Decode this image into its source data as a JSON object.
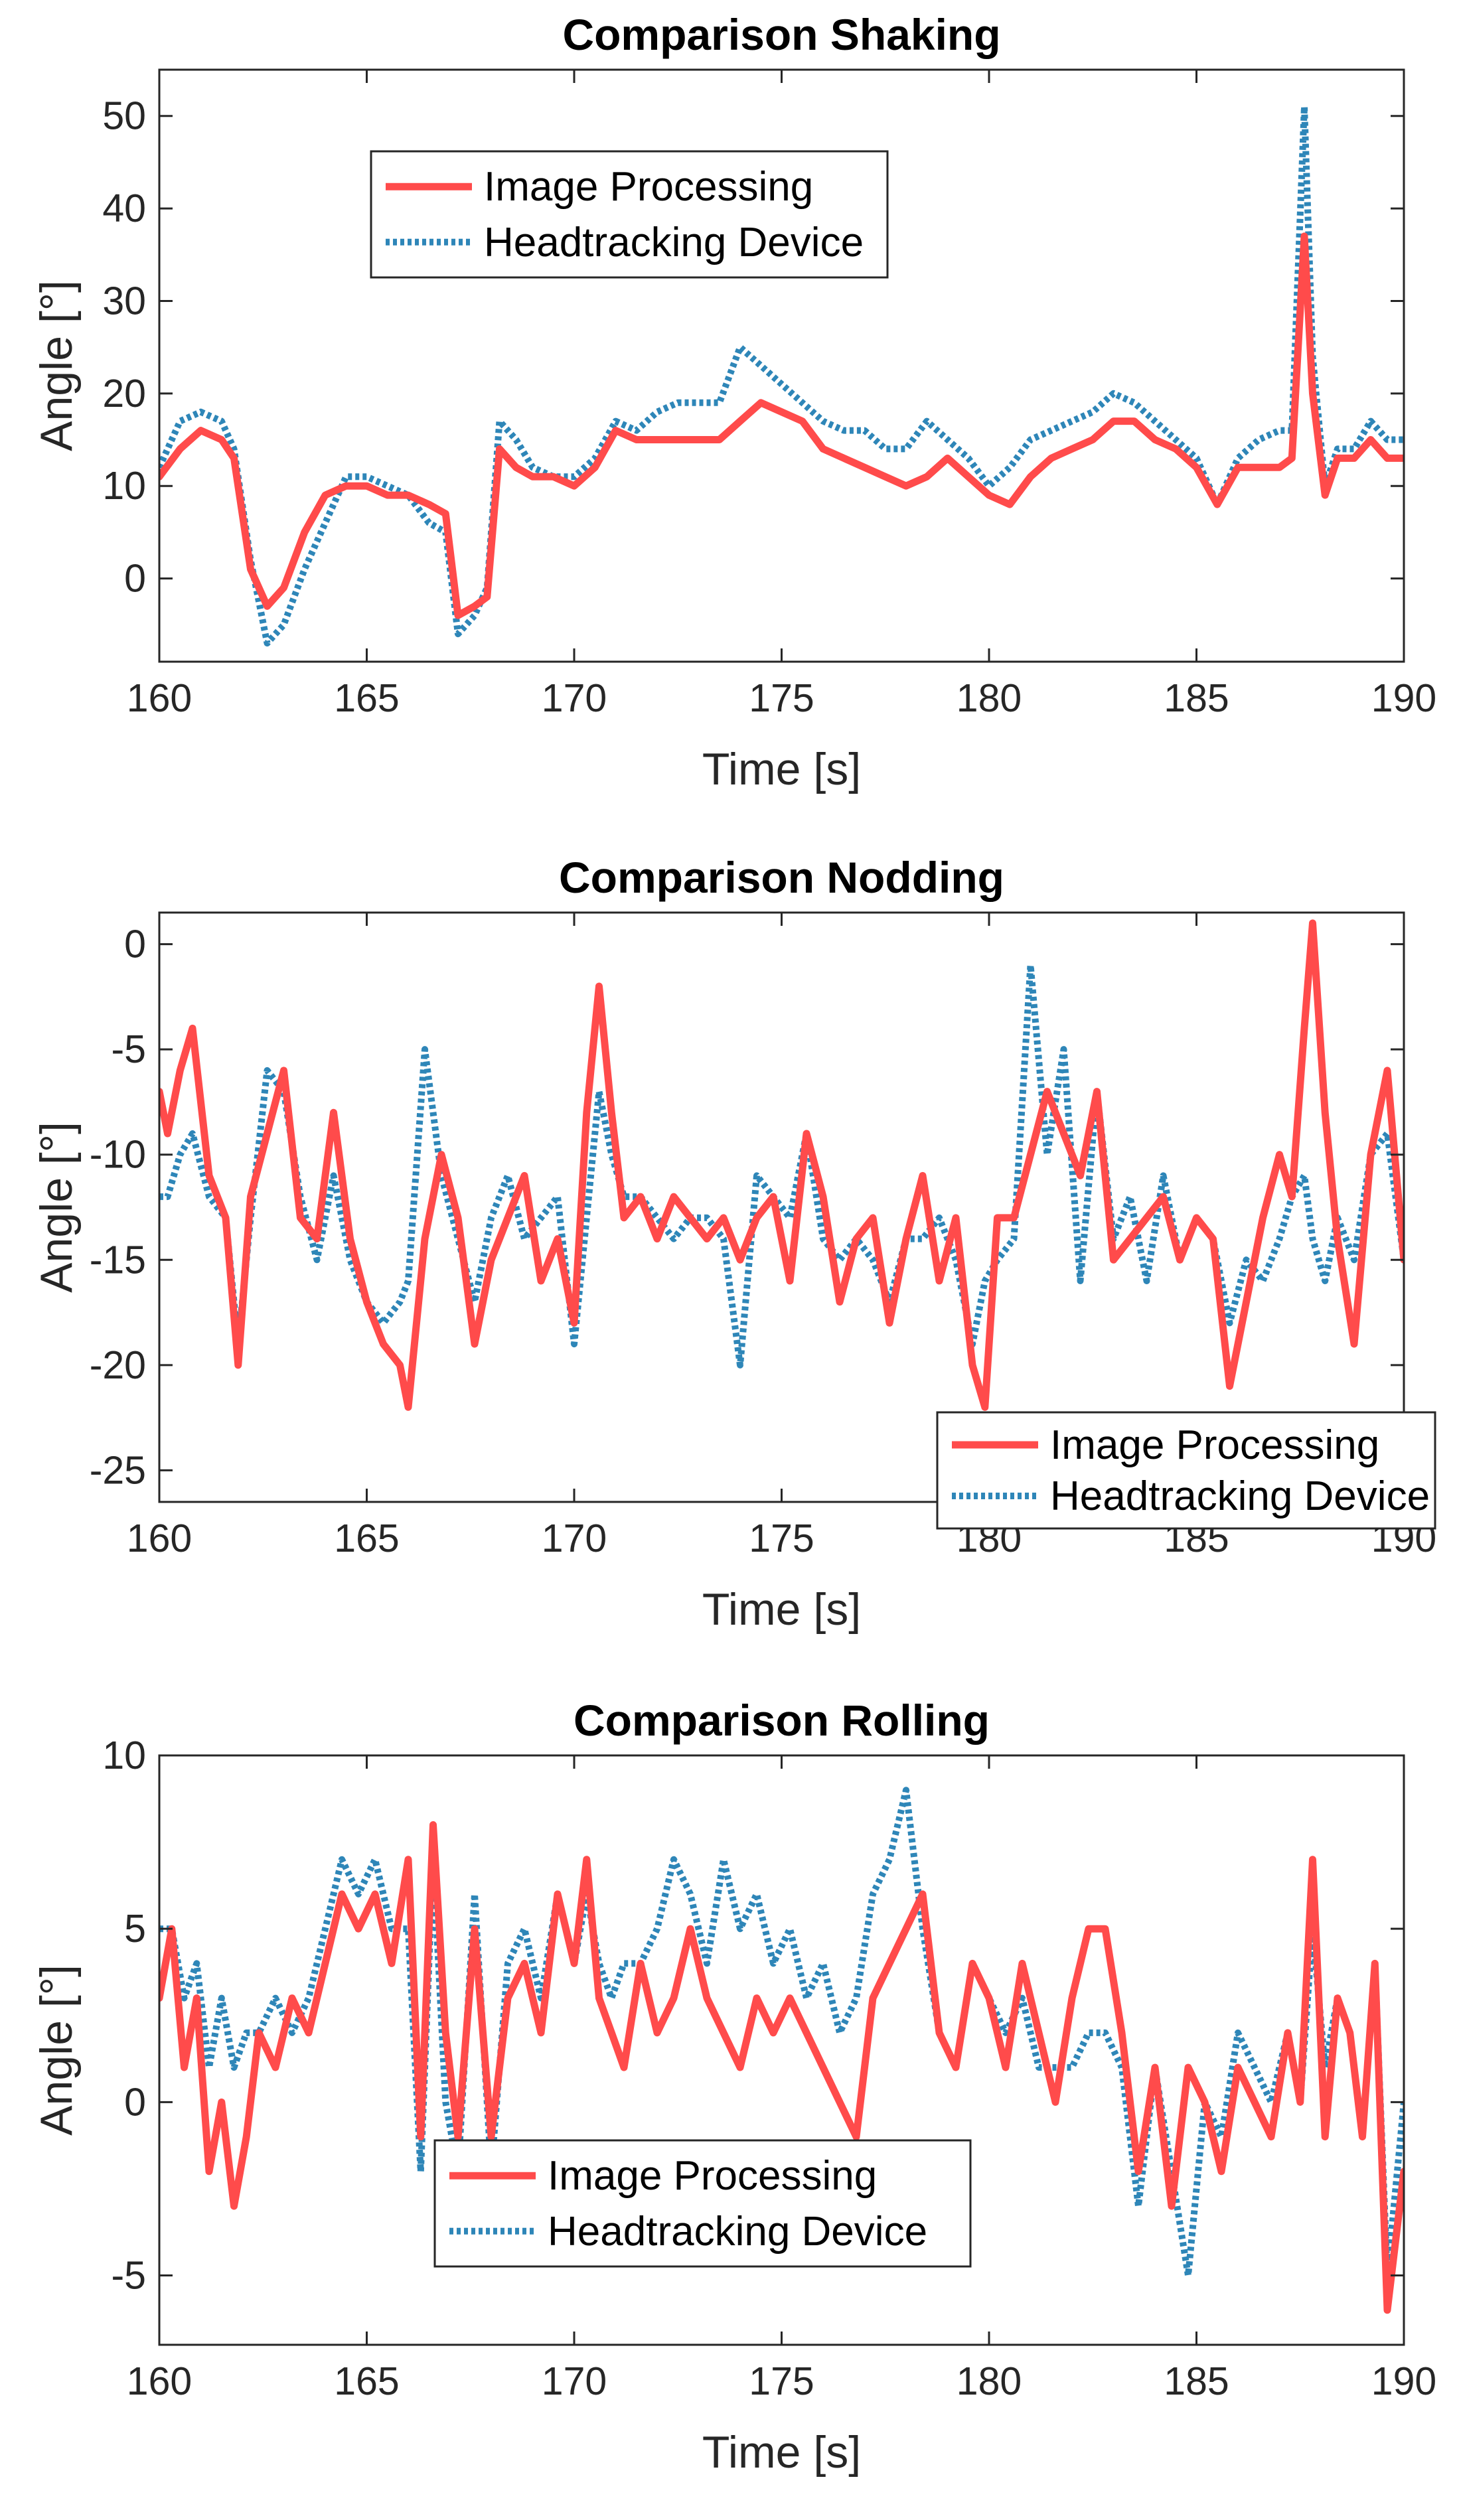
{
  "colors": {
    "image_processing": "#FF4B4B",
    "headtracking_device": "#2E86B8",
    "axes": "#262626"
  },
  "chart_data": [
    {
      "type": "line",
      "title": "Comparison Shaking",
      "xlabel": "Time [s]",
      "ylabel": "Angle [°]",
      "xlim": [
        160,
        190
      ],
      "ylim": [
        -9,
        55
      ],
      "xticks": [
        160,
        165,
        170,
        175,
        180,
        185,
        190
      ],
      "yticks": [
        0,
        10,
        20,
        30,
        40,
        50
      ],
      "xtick_labels": [
        "160",
        "165",
        "170",
        "175",
        "180",
        "185",
        "190"
      ],
      "ytick_labels": [
        "0",
        "10",
        "20",
        "30",
        "40",
        "50"
      ],
      "legend_location": "upper-left",
      "series": [
        {
          "name": "Image Processing",
          "style": "solid",
          "x": [
            160,
            160.5,
            161,
            161.5,
            161.8,
            162.2,
            162.6,
            163,
            163.5,
            164,
            164.5,
            165,
            165.5,
            166,
            166.5,
            166.9,
            167.2,
            167.6,
            167.9,
            168.2,
            168.6,
            169,
            169.5,
            170,
            170.5,
            171,
            171.5,
            172,
            172.5,
            173,
            173.5,
            174,
            174.5,
            175,
            175.5,
            176,
            176.5,
            177,
            177.5,
            178,
            178.5,
            179,
            179.5,
            180,
            180.5,
            181,
            181.5,
            182,
            182.5,
            183,
            183.5,
            184,
            184.5,
            185,
            185.5,
            186,
            186.5,
            187,
            187.3,
            187.6,
            187.8,
            188.1,
            188.4,
            188.8,
            189.2,
            189.6,
            190
          ],
          "values": [
            11,
            14,
            16,
            15,
            13,
            1,
            -3,
            -1,
            5,
            9,
            10,
            10,
            9,
            9,
            8,
            7,
            -4,
            -3,
            -2,
            14,
            12,
            11,
            11,
            10,
            12,
            16,
            15,
            15,
            15,
            15,
            15,
            17,
            19,
            18,
            17,
            14,
            13,
            12,
            11,
            10,
            11,
            13,
            11,
            9,
            8,
            11,
            13,
            14,
            15,
            17,
            17,
            15,
            14,
            12,
            8,
            12,
            12,
            12,
            13,
            37,
            20,
            9,
            13,
            13,
            15,
            13,
            13
          ]
        },
        {
          "name": "Headtracking Device",
          "style": "dotted",
          "x": [
            160,
            160.5,
            161,
            161.5,
            161.8,
            162.2,
            162.6,
            163,
            163.5,
            164,
            164.5,
            165,
            165.5,
            166,
            166.5,
            166.9,
            167.2,
            167.6,
            167.9,
            168.2,
            168.6,
            169,
            169.5,
            170,
            170.5,
            171,
            171.5,
            172,
            172.5,
            173,
            173.5,
            174,
            174.5,
            175,
            175.5,
            176,
            176.5,
            177,
            177.5,
            178,
            178.5,
            179,
            179.5,
            180,
            180.5,
            181,
            181.5,
            182,
            182.5,
            183,
            183.5,
            184,
            184.5,
            185,
            185.5,
            186,
            186.5,
            187,
            187.3,
            187.6,
            187.8,
            188.1,
            188.4,
            188.8,
            189.2,
            189.6,
            190
          ],
          "values": [
            12,
            17,
            18,
            17,
            14,
            2,
            -7,
            -5,
            1,
            6,
            11,
            11,
            10,
            9,
            6,
            5,
            -6,
            -4,
            -1,
            17,
            15,
            12,
            11,
            11,
            13,
            17,
            16,
            18,
            19,
            19,
            19,
            25,
            23,
            21,
            19,
            17,
            16,
            16,
            14,
            14,
            17,
            15,
            13,
            10,
            12,
            15,
            16,
            17,
            18,
            20,
            19,
            17,
            15,
            13,
            8,
            13,
            15,
            16,
            16,
            51,
            24,
            10,
            14,
            14,
            17,
            15,
            15
          ]
        }
      ]
    },
    {
      "type": "line",
      "title": "Comparison Nodding",
      "xlabel": "Time [s]",
      "ylabel": "Angle [°]",
      "xlim": [
        160,
        190
      ],
      "ylim": [
        -26.5,
        1.5
      ],
      "xticks": [
        160,
        165,
        170,
        175,
        180,
        185,
        190
      ],
      "yticks": [
        -25,
        -20,
        -15,
        -10,
        -5,
        0
      ],
      "xtick_labels": [
        "160",
        "165",
        "170",
        "175",
        "180",
        "185",
        "190"
      ],
      "ytick_labels": [
        "-25",
        "-20",
        "-15",
        "-10",
        "-5",
        "0"
      ],
      "legend_location": "bottom-right",
      "series": [
        {
          "name": "Image Processing",
          "style": "solid",
          "x": [
            160,
            160.2,
            160.5,
            160.8,
            161.2,
            161.6,
            161.9,
            162.2,
            162.6,
            163,
            163.4,
            163.8,
            164.2,
            164.6,
            165,
            165.4,
            165.8,
            166,
            166.4,
            166.8,
            167.2,
            167.6,
            168,
            168.4,
            168.8,
            169.2,
            169.6,
            170,
            170.3,
            170.6,
            170.9,
            171.2,
            171.6,
            172,
            172.4,
            172.8,
            173.2,
            173.6,
            174,
            174.4,
            174.8,
            175.2,
            175.6,
            176,
            176.4,
            176.8,
            177.2,
            177.6,
            178,
            178.4,
            178.8,
            179.2,
            179.6,
            179.9,
            180.2,
            180.6,
            181,
            181.4,
            181.8,
            182.2,
            182.6,
            183,
            183.4,
            183.8,
            184.2,
            184.6,
            185,
            185.4,
            185.8,
            186.2,
            186.6,
            187,
            187.3,
            187.6,
            187.8,
            188.1,
            188.4,
            188.8,
            189.2,
            189.6,
            190
          ],
          "values": [
            -7,
            -9,
            -6,
            -4,
            -11,
            -13,
            -20,
            -12,
            -9,
            -6,
            -13,
            -14,
            -8,
            -14,
            -17,
            -19,
            -20,
            -22,
            -14,
            -10,
            -13,
            -19,
            -15,
            -13,
            -11,
            -16,
            -14,
            -18,
            -8,
            -2,
            -8,
            -13,
            -12,
            -14,
            -12,
            -13,
            -14,
            -13,
            -15,
            -13,
            -12,
            -16,
            -9,
            -12,
            -17,
            -14,
            -13,
            -18,
            -14,
            -11,
            -16,
            -13,
            -20,
            -22,
            -13,
            -13,
            -10,
            -7,
            -9,
            -11,
            -7,
            -15,
            -14,
            -13,
            -12,
            -15,
            -13,
            -14,
            -21,
            -17,
            -13,
            -10,
            -12,
            -4,
            1,
            -8,
            -14,
            -19,
            -10,
            -6,
            -15
          ]
        },
        {
          "name": "Headtracking Device",
          "style": "dotted",
          "x": [
            160,
            160.2,
            160.5,
            160.8,
            161.2,
            161.6,
            161.9,
            162.2,
            162.6,
            163,
            163.4,
            163.8,
            164.2,
            164.6,
            165,
            165.4,
            165.8,
            166,
            166.4,
            166.8,
            167.2,
            167.6,
            168,
            168.4,
            168.8,
            169.2,
            169.6,
            170,
            170.3,
            170.6,
            170.9,
            171.2,
            171.6,
            172,
            172.4,
            172.8,
            173.2,
            173.6,
            174,
            174.4,
            174.8,
            175.2,
            175.6,
            176,
            176.4,
            176.8,
            177.2,
            177.6,
            178,
            178.4,
            178.8,
            179.2,
            179.6,
            179.9,
            180.2,
            180.6,
            181,
            181.4,
            181.8,
            182.2,
            182.6,
            183,
            183.4,
            183.8,
            184.2,
            184.6,
            185,
            185.4,
            185.8,
            186.2,
            186.6,
            187,
            187.3,
            187.6,
            187.8,
            188.1,
            188.4,
            188.8,
            189.2,
            189.6,
            190
          ],
          "values": [
            -12,
            -12,
            -10,
            -9,
            -12,
            -13,
            -19,
            -13,
            -6,
            -7,
            -12,
            -15,
            -11,
            -15,
            -17,
            -18,
            -17,
            -16,
            -5,
            -11,
            -14,
            -17,
            -13,
            -11,
            -14,
            -13,
            -12,
            -19,
            -13,
            -7,
            -10,
            -12,
            -12,
            -13,
            -14,
            -13,
            -13,
            -14,
            -20,
            -11,
            -12,
            -13,
            -9,
            -14,
            -15,
            -14,
            -15,
            -17,
            -14,
            -14,
            -13,
            -15,
            -19,
            -16,
            -15,
            -14,
            -1,
            -10,
            -5,
            -16,
            -7,
            -14,
            -12,
            -16,
            -11,
            -15,
            -13,
            -14,
            -18,
            -15,
            -16,
            -14,
            -12,
            -11,
            -14,
            -16,
            -13,
            -15,
            -10,
            -9,
            -15
          ]
        }
      ]
    },
    {
      "type": "line",
      "title": "Comparison Rolling",
      "xlabel": "Time [s]",
      "ylabel": "Angle [°]",
      "xlim": [
        160,
        190
      ],
      "ylim": [
        -7,
        10
      ],
      "xticks": [
        160,
        165,
        170,
        175,
        180,
        185,
        190
      ],
      "yticks": [
        -5,
        0,
        5,
        10
      ],
      "xtick_labels": [
        "160",
        "165",
        "170",
        "175",
        "180",
        "185",
        "190"
      ],
      "ytick_labels": [
        "-5",
        "0",
        "5",
        "10"
      ],
      "legend_location": "bottom-left",
      "series": [
        {
          "name": "Image Processing",
          "style": "solid",
          "x": [
            160,
            160.3,
            160.6,
            160.9,
            161.2,
            161.5,
            161.8,
            162.1,
            162.4,
            162.8,
            163.2,
            163.6,
            164,
            164.4,
            164.8,
            165.2,
            165.6,
            166,
            166.3,
            166.6,
            166.9,
            167.2,
            167.6,
            168,
            168.4,
            168.8,
            169.2,
            169.6,
            170,
            170.3,
            170.6,
            170.9,
            171.2,
            171.6,
            172,
            172.4,
            172.8,
            173.2,
            173.6,
            174,
            174.4,
            174.8,
            175.2,
            175.6,
            176,
            176.4,
            176.8,
            177.2,
            177.6,
            178,
            178.4,
            178.8,
            179.2,
            179.6,
            180,
            180.4,
            180.8,
            181.2,
            181.6,
            182,
            182.4,
            182.8,
            183.2,
            183.6,
            184,
            184.4,
            184.8,
            185.2,
            185.6,
            186,
            186.4,
            186.8,
            187.2,
            187.5,
            187.8,
            188.1,
            188.4,
            188.7,
            189,
            189.3,
            189.6,
            190
          ],
          "values": [
            3,
            5,
            1,
            3,
            -2,
            0,
            -3,
            -1,
            2,
            1,
            3,
            2,
            4,
            6,
            5,
            6,
            4,
            7,
            -1,
            8,
            2,
            -1,
            5,
            -1,
            3,
            4,
            2,
            6,
            4,
            7,
            3,
            2,
            1,
            4,
            2,
            3,
            5,
            3,
            2,
            1,
            3,
            2,
            3,
            2,
            1,
            0,
            -1,
            3,
            4,
            5,
            6,
            2,
            1,
            4,
            3,
            1,
            4,
            2,
            0,
            3,
            5,
            5,
            2,
            -2,
            1,
            -3,
            1,
            0,
            -2,
            1,
            0,
            -1,
            2,
            0,
            7,
            -1,
            3,
            2,
            -1,
            4,
            -6,
            -2
          ]
        },
        {
          "name": "Headtracking Device",
          "style": "dotted",
          "x": [
            160,
            160.3,
            160.6,
            160.9,
            161.2,
            161.5,
            161.8,
            162.1,
            162.4,
            162.8,
            163.2,
            163.6,
            164,
            164.4,
            164.8,
            165.2,
            165.6,
            166,
            166.3,
            166.6,
            166.9,
            167.2,
            167.6,
            168,
            168.4,
            168.8,
            169.2,
            169.6,
            170,
            170.3,
            170.6,
            170.9,
            171.2,
            171.6,
            172,
            172.4,
            172.8,
            173.2,
            173.6,
            174,
            174.4,
            174.8,
            175.2,
            175.6,
            176,
            176.4,
            176.8,
            177.2,
            177.6,
            178,
            178.4,
            178.8,
            179.2,
            179.6,
            180,
            180.4,
            180.8,
            181.2,
            181.6,
            182,
            182.4,
            182.8,
            183.2,
            183.6,
            184,
            184.4,
            184.8,
            185.2,
            185.6,
            186,
            186.4,
            186.8,
            187.2,
            187.5,
            187.8,
            188.1,
            188.4,
            188.7,
            189,
            189.3,
            189.6,
            190
          ],
          "values": [
            5,
            5,
            3,
            4,
            1,
            3,
            1,
            2,
            2,
            3,
            2,
            3,
            5,
            7,
            6,
            7,
            5,
            5,
            -2,
            7,
            0,
            -2,
            6,
            -2,
            4,
            5,
            3,
            6,
            4,
            6,
            4,
            3,
            4,
            4,
            5,
            7,
            6,
            4,
            7,
            5,
            6,
            4,
            5,
            3,
            4,
            2,
            3,
            6,
            7,
            9,
            5,
            2,
            1,
            4,
            3,
            2,
            3,
            1,
            1,
            1,
            2,
            2,
            1,
            -3,
            1,
            -2,
            -5,
            0,
            -1,
            2,
            1,
            0,
            2,
            0,
            5,
            1,
            3,
            2,
            -1,
            4,
            -5,
            0
          ]
        }
      ]
    }
  ]
}
